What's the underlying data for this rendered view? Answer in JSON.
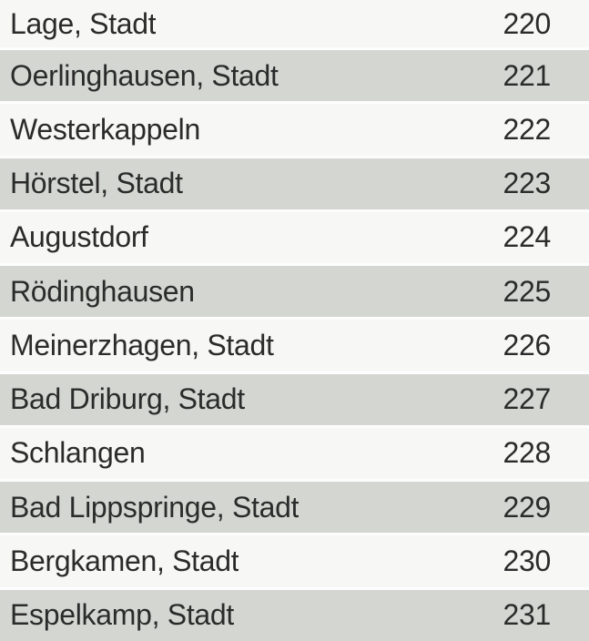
{
  "list": {
    "rows": [
      {
        "name": "Lage, Stadt",
        "code": "220"
      },
      {
        "name": "Oerlinghausen, Stadt",
        "code": "221"
      },
      {
        "name": "Westerkappeln",
        "code": "222"
      },
      {
        "name": "Hörstel, Stadt",
        "code": "223"
      },
      {
        "name": "Augustdorf",
        "code": "224"
      },
      {
        "name": "Rödinghausen",
        "code": "225"
      },
      {
        "name": "Meinerzhagen, Stadt",
        "code": "226"
      },
      {
        "name": "Bad Driburg, Stadt",
        "code": "227"
      },
      {
        "name": "Schlangen",
        "code": "228"
      },
      {
        "name": "Bad Lippspringe, Stadt",
        "code": "229"
      },
      {
        "name": "Bergkamen, Stadt",
        "code": "230"
      },
      {
        "name": "Espelkamp, Stadt",
        "code": "231"
      }
    ]
  },
  "colors": {
    "row_light": "#f7f8f6",
    "row_shaded": "#d4d7d1",
    "separator": "#fdfdfd",
    "text": "#2b2b2b"
  }
}
